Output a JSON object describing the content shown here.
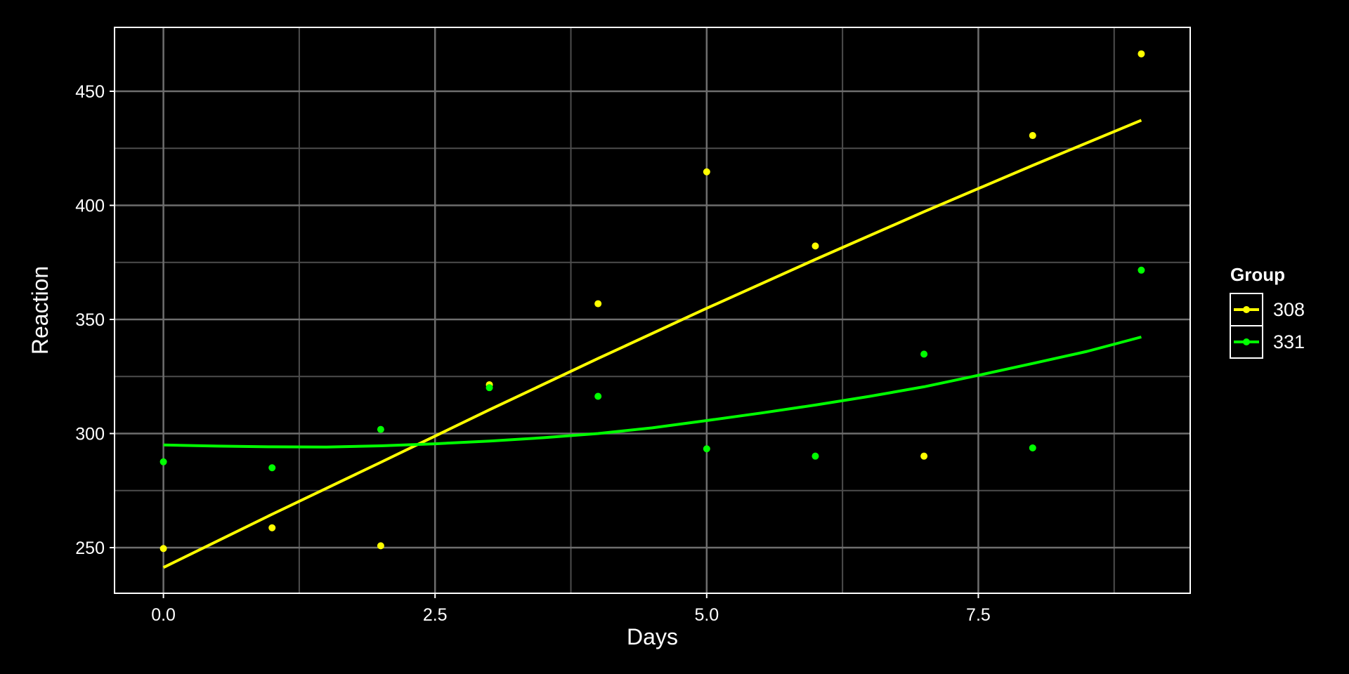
{
  "chart_data": {
    "type": "scatter",
    "title": "",
    "xlabel": "Days",
    "ylabel": "Reaction",
    "xlim": [
      -0.45,
      9.45
    ],
    "ylim": [
      230,
      478
    ],
    "x_ticks_major": [
      0,
      2.5,
      5,
      7.5
    ],
    "x_tick_labels": [
      "0.0",
      "2.5",
      "5.0",
      "7.5"
    ],
    "x_ticks_minor": [
      1.25,
      3.75,
      6.25,
      8.75
    ],
    "y_ticks_major": [
      250,
      300,
      350,
      400,
      450
    ],
    "y_tick_labels": [
      "250",
      "300",
      "350",
      "400",
      "450"
    ],
    "y_ticks_minor": [
      275,
      325,
      375,
      425
    ],
    "grid": true,
    "legend": {
      "title": "Group",
      "position": "right"
    },
    "series": [
      {
        "name": "308",
        "color": "#ffff00",
        "x": [
          0,
          1,
          2,
          3,
          4,
          5,
          6,
          7,
          8,
          9
        ],
        "y": [
          249.6,
          258.7,
          250.8,
          321.4,
          356.9,
          414.7,
          382.2,
          290.1,
          430.6,
          466.4
        ],
        "fit": {
          "x": [
            0,
            1,
            2,
            3,
            4,
            5,
            6,
            7,
            8,
            9
          ],
          "y": [
            241.3,
            264.6,
            287.4,
            310.4,
            332.9,
            354.9,
            376.3,
            397.2,
            417.5,
            437.3
          ]
        }
      },
      {
        "name": "331",
        "color": "#00ff00",
        "x": [
          0,
          1,
          2,
          3,
          4,
          5,
          6,
          7,
          8,
          9
        ],
        "y": [
          287.6,
          285.0,
          301.8,
          320.1,
          316.3,
          293.3,
          290.1,
          334.8,
          293.7,
          371.6
        ],
        "fit": {
          "x": [
            0,
            0.5,
            1,
            1.5,
            2,
            2.5,
            3,
            3.5,
            4,
            4.5,
            5,
            5.5,
            6,
            6.5,
            7,
            7.5,
            8,
            8.5,
            9
          ],
          "y": [
            295.0,
            294.5,
            294.2,
            294.1,
            294.6,
            295.5,
            296.7,
            298.2,
            300.0,
            302.5,
            305.7,
            309.0,
            312.5,
            316.3,
            320.5,
            325.5,
            330.7,
            336.0,
            342.3
          ]
        }
      }
    ]
  }
}
